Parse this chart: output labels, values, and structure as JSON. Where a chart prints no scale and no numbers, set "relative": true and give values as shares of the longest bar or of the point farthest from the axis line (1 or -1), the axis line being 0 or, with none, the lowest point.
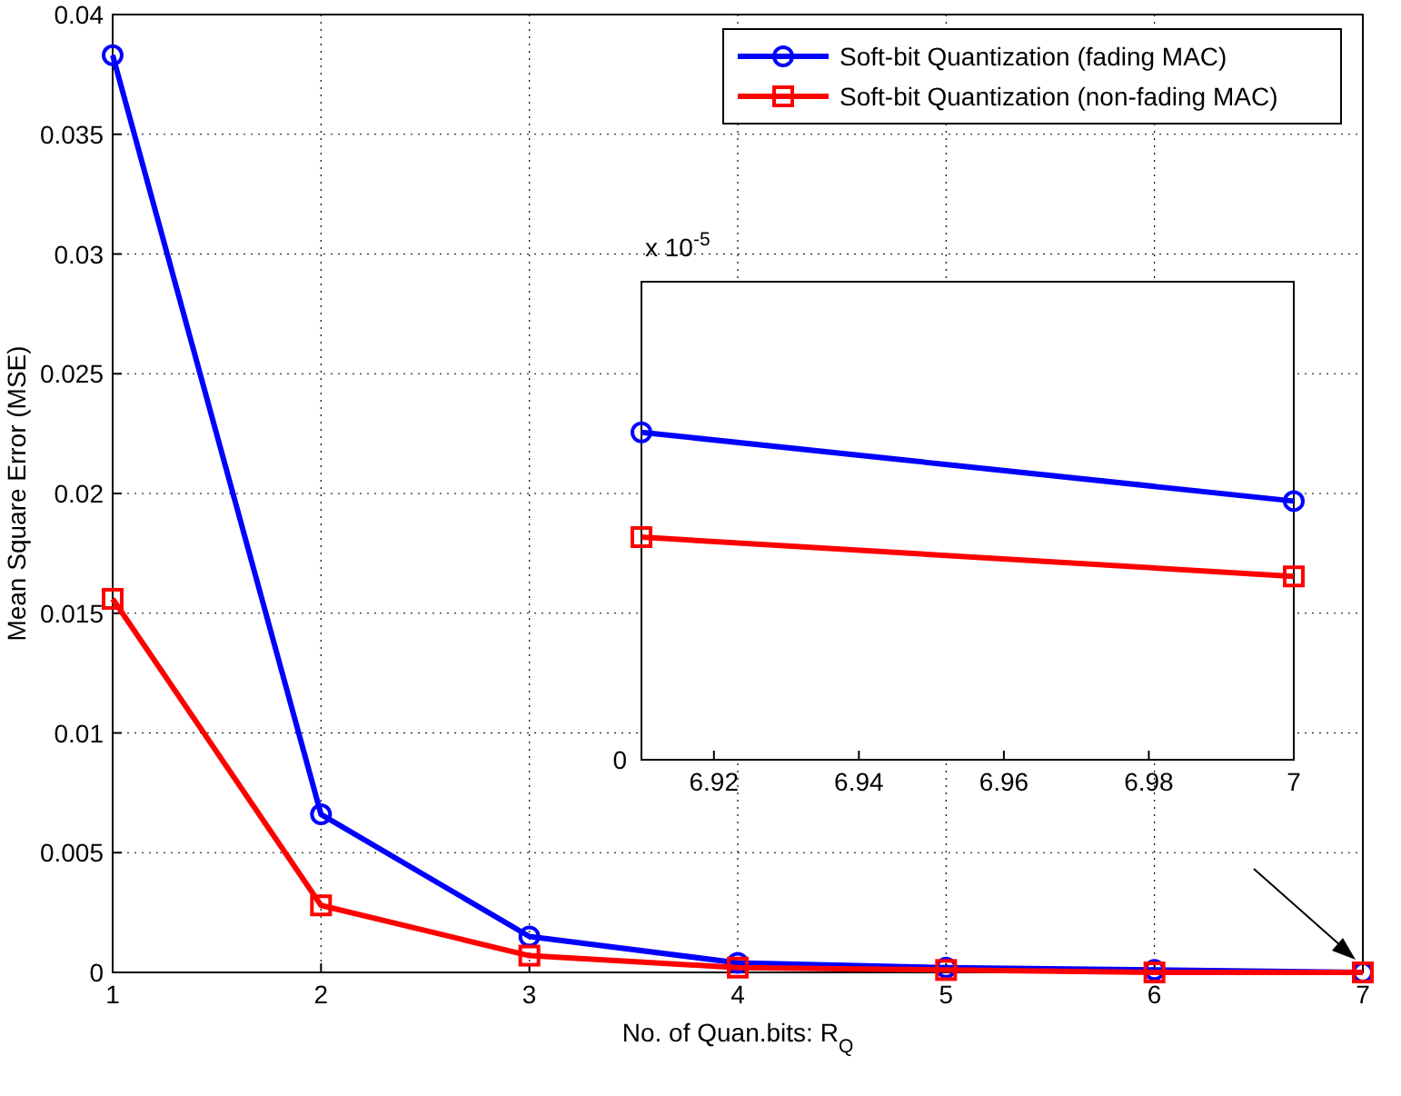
{
  "chart_data": [
    {
      "type": "line",
      "xlabel": "No. of Quan.bits: R$_{Q}$",
      "ylabel": "Mean Square Error (MSE)",
      "x": [
        1,
        2,
        3,
        4,
        5,
        6,
        7
      ],
      "xlim": [
        1,
        7
      ],
      "xticks": [
        1,
        2,
        3,
        4,
        5,
        6,
        7
      ],
      "ylim": [
        0,
        0.04
      ],
      "yticks": [
        0,
        0.005,
        0.01,
        0.015,
        0.02,
        0.025,
        0.03,
        0.035,
        0.04
      ],
      "grid": true,
      "legend": "top right",
      "line_style": "solid",
      "series": [
        {
          "name": "Soft-bit Quantization (fading MAC)",
          "color": "#0000ff",
          "marker": "circle",
          "values": [
            0.0383,
            0.0066,
            0.0015,
            0.0004,
            0.0002,
            0.0001,
            0
          ]
        },
        {
          "name": "Soft-bit Quantization (non-fading MAC)",
          "color": "#ff0000",
          "marker": "square",
          "values": [
            0.0156,
            0.0028,
            0.0007,
            0.0002,
            0.0001,
            0,
            0
          ]
        }
      ]
    },
    {
      "type": "line",
      "relative": true,
      "x": [
        6.91,
        7
      ],
      "xlim": [
        6.91,
        7
      ],
      "xticks": [
        6.92,
        6.94,
        6.96,
        6.98,
        {
          "value": 7,
          "label": "7"
        }
      ],
      "line_style": "solid",
      "annotations": [
        "x 10$^{-5}$",
        "0"
      ],
      "series": [
        {
          "color": "#0000ff",
          "marker": "circle",
          "values": [
            1,
            0.79
          ]
        },
        {
          "color": "#ff0000",
          "marker": "square",
          "values": [
            0.68,
            0.56
          ]
        }
      ]
    }
  ]
}
